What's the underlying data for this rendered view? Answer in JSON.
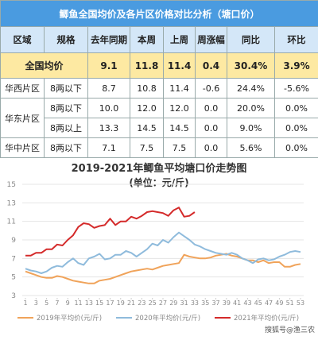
{
  "table": {
    "title": "鲫鱼全国均价及各片区价格对比分析（塘口价）",
    "header": [
      "区域",
      "规格",
      "去年同期",
      "本周",
      "上周",
      "周涨幅",
      "同比",
      "环比"
    ],
    "rows": [
      [
        "全国均价",
        "9.1",
        "11.8",
        "11.4",
        "0.4",
        "30.4%",
        "3.9%"
      ],
      [
        "华西片区",
        "8两以下",
        "8.7",
        "10.8",
        "11.4",
        "-0.6",
        "24.4%",
        "-5.6%"
      ],
      [
        "华东片区",
        "8两以下",
        "10.0",
        "12.0",
        "12.0",
        "0.0",
        "20.0%",
        "0.0%"
      ],
      [
        "8两以上",
        "13.3",
        "14.5",
        "14.5",
        "0.0",
        "9.0%",
        "0.0%"
      ],
      [
        "华中片区",
        "8两以下",
        "7.1",
        "7.5",
        "7.5",
        "0.0",
        "5.6%",
        "0.0%"
      ]
    ]
  },
  "chart_data": {
    "type": "line",
    "title": "2019-2021年鲫鱼平均塘口价走势图",
    "subtitle": "(单位：元/斤)",
    "x": [
      1,
      2,
      3,
      4,
      5,
      6,
      7,
      8,
      9,
      10,
      11,
      12,
      13,
      14,
      15,
      16,
      17,
      18,
      19,
      20,
      21,
      22,
      23,
      24,
      25,
      26,
      27,
      28,
      29,
      30,
      31,
      32,
      33,
      34,
      35,
      36,
      37,
      38,
      39,
      40,
      41,
      42,
      43,
      44,
      45,
      46,
      47,
      48,
      49,
      50,
      51,
      52,
      53
    ],
    "xlim": [
      1,
      53
    ],
    "xticks": [
      1,
      3,
      5,
      7,
      9,
      11,
      13,
      15,
      17,
      19,
      21,
      23,
      25,
      27,
      29,
      31,
      33,
      35,
      37,
      39,
      41,
      43,
      45,
      47,
      49,
      51,
      53
    ],
    "ylim": [
      3,
      15
    ],
    "yticks": [
      3,
      5,
      7,
      9,
      11,
      13,
      15
    ],
    "grid": true,
    "series": [
      {
        "name": "2019年平均价(元/斤)",
        "color": "#f0a35a",
        "values": [
          5.6,
          5.4,
          5.2,
          5.0,
          4.9,
          4.9,
          5.1,
          5.0,
          4.8,
          4.6,
          4.5,
          4.4,
          4.3,
          4.3,
          4.6,
          4.7,
          4.8,
          5.0,
          5.2,
          5.4,
          5.6,
          5.7,
          5.8,
          5.9,
          5.8,
          6.0,
          6.2,
          6.3,
          6.4,
          6.5,
          7.4,
          7.2,
          7.1,
          7.0,
          7.0,
          7.1,
          7.3,
          7.4,
          7.5,
          7.3,
          7.2,
          7.0,
          6.8,
          6.8,
          6.6,
          6.8,
          6.5,
          6.6,
          6.6,
          6.1,
          6.1,
          6.3,
          6.4
        ]
      },
      {
        "name": "2020年平均价(元/斤)",
        "color": "#8fbbdc",
        "values": [
          5.9,
          5.7,
          5.6,
          5.4,
          5.6,
          6.0,
          6.2,
          6.1,
          6.6,
          7.0,
          6.5,
          6.3,
          7.0,
          7.2,
          7.5,
          6.9,
          7.0,
          7.4,
          7.4,
          7.8,
          7.6,
          7.2,
          7.6,
          8.0,
          8.6,
          8.4,
          9.0,
          8.7,
          9.3,
          9.8,
          9.4,
          9.0,
          8.5,
          8.3,
          8.0,
          7.8,
          7.6,
          7.5,
          7.4,
          7.6,
          7.4,
          7.0,
          6.8,
          6.5,
          6.9,
          7.0,
          6.8,
          6.9,
          7.2,
          7.4,
          7.7,
          7.8,
          7.7
        ]
      },
      {
        "name": "2021年平均价(元/斤)",
        "color": "#d42a2a",
        "values": [
          7.3,
          7.3,
          7.6,
          7.6,
          8.0,
          8.0,
          8.5,
          8.4,
          9.0,
          9.5,
          10.4,
          10.8,
          10.7,
          10.3,
          10.5,
          10.6,
          11.3,
          10.6,
          11.0,
          11.0,
          11.5,
          11.3,
          11.6,
          12.0,
          12.1,
          12.0,
          11.9,
          11.6,
          12.2,
          12.5,
          11.5,
          11.6,
          12.0,
          null,
          null,
          null,
          null,
          null,
          null,
          null,
          null,
          null,
          null,
          null,
          null,
          null,
          null,
          null,
          null,
          null,
          null,
          null,
          null
        ]
      }
    ]
  },
  "watermark": "搜狐号@渔三农"
}
